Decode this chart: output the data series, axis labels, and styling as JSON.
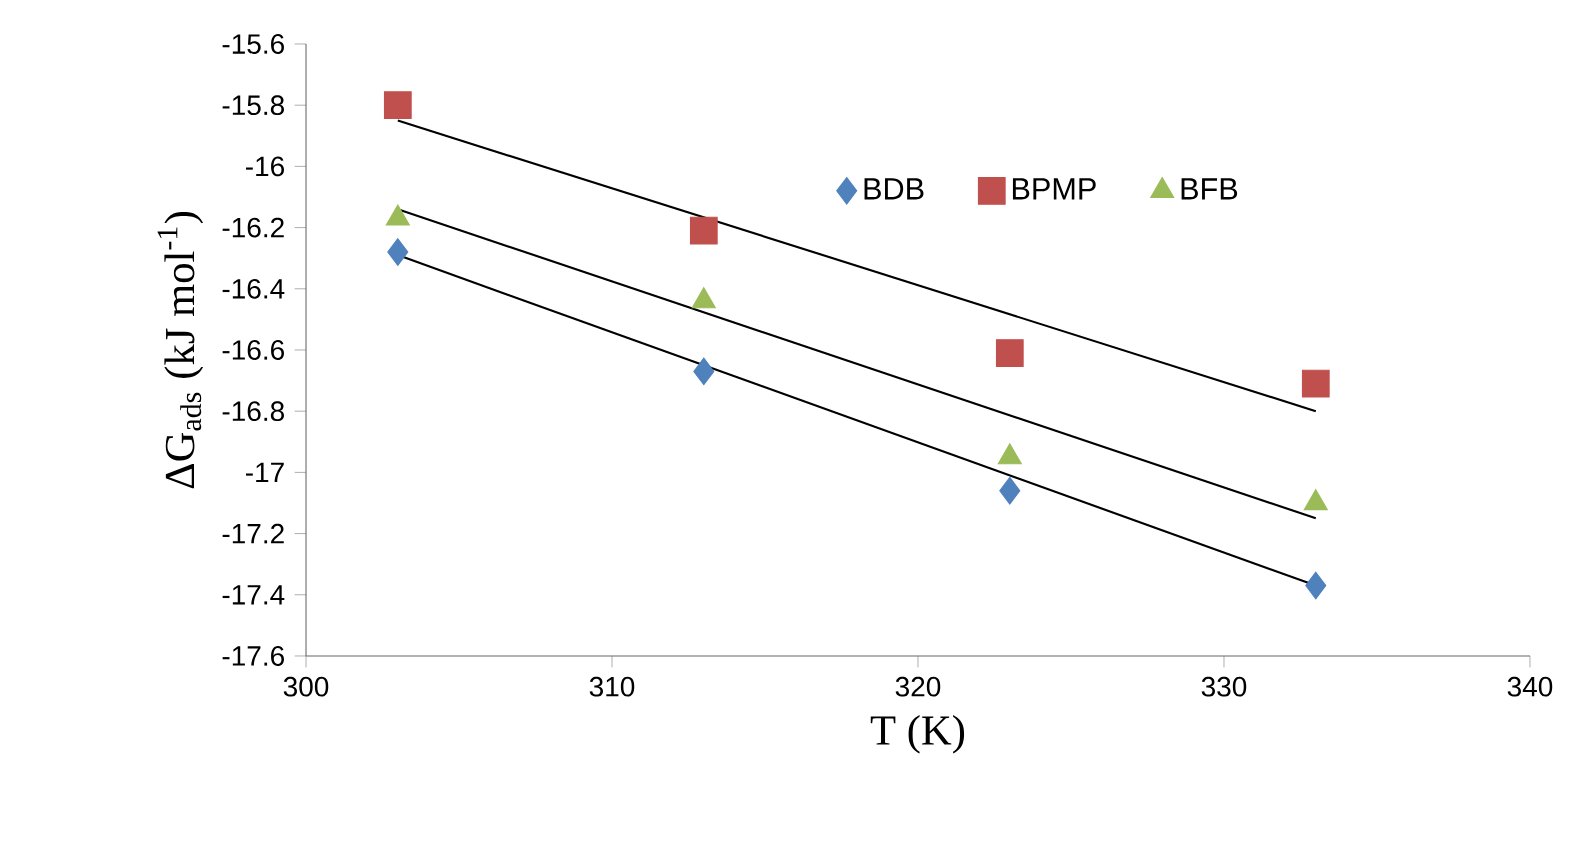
{
  "chart_data": {
    "type": "scatter",
    "xlabel": "T (K)",
    "ylabel": "ΔG$_{ads}$ (kJ mol$^{-1}$)",
    "xlim": [
      300,
      340
    ],
    "xticks": [
      300,
      310,
      320,
      330,
      340
    ],
    "ylim": [
      -17.6,
      -15.6
    ],
    "yticks": [
      -17.6,
      -17.4,
      -17.2,
      -17,
      -16.8,
      -16.6,
      -16.4,
      -16.2,
      -16,
      -15.8,
      -15.6
    ],
    "x": [
      303,
      313,
      323,
      333
    ],
    "legend": "top",
    "grid": false,
    "series": [
      {
        "type": "line",
        "color": "#000000",
        "values": [
          -15.85,
          null,
          null,
          -16.8
        ]
      },
      {
        "type": "line",
        "color": "#000000",
        "values": [
          -16.14,
          null,
          null,
          -17.15
        ]
      },
      {
        "type": "line",
        "color": "#000000",
        "values": [
          -16.29,
          null,
          null,
          -17.37
        ]
      },
      {
        "name": "BDB",
        "color": "#4f81bd",
        "marker": "diamond",
        "values": [
          -16.28,
          -16.67,
          -17.06,
          -17.37
        ]
      },
      {
        "name": "BPMP",
        "color": "#c0504d",
        "marker": "square",
        "values": [
          -15.8,
          -16.21,
          -16.61,
          -16.71
        ]
      },
      {
        "name": "BFB",
        "color": "#9bbb59",
        "marker": "triangle",
        "values": [
          -16.17,
          -16.44,
          -16.95,
          -17.1
        ]
      }
    ]
  }
}
